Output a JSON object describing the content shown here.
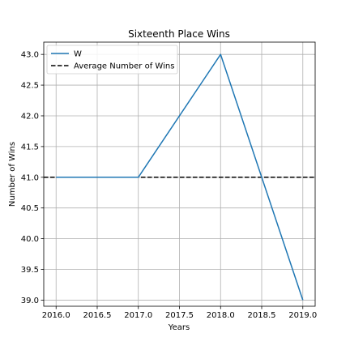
{
  "chart_data": {
    "type": "line",
    "title": "Sixteenth Place Wins",
    "xlabel": "Years",
    "ylabel": "Number of Wins",
    "xlim": [
      2015.85,
      2019.15
    ],
    "ylim": [
      38.9,
      43.2
    ],
    "grid": true,
    "x_ticks": [
      2016.0,
      2016.5,
      2017.0,
      2017.5,
      2018.0,
      2018.5,
      2019.0
    ],
    "x_tick_labels": [
      "2016.0",
      "2016.5",
      "2017.0",
      "2017.5",
      "2018.0",
      "2018.5",
      "2019.0"
    ],
    "y_ticks": [
      39.0,
      39.5,
      40.0,
      40.5,
      41.0,
      41.5,
      42.0,
      42.5,
      43.0
    ],
    "y_tick_labels": [
      "39.0",
      "39.5",
      "40.0",
      "40.5",
      "41.0",
      "41.5",
      "42.0",
      "42.5",
      "43.0"
    ],
    "series": [
      {
        "name": "W",
        "color": "#1f77b4",
        "style": "solid",
        "x": [
          2016,
          2017,
          2018,
          2019
        ],
        "values": [
          41,
          41,
          43,
          39
        ]
      }
    ],
    "reference_lines": [
      {
        "name": "Average Number of Wins",
        "orientation": "horizontal",
        "value": 41.0,
        "color": "#000000",
        "style": "dashed"
      }
    ],
    "legend": {
      "position": "top-left",
      "entries": [
        "W",
        "Average Number of Wins"
      ]
    }
  }
}
